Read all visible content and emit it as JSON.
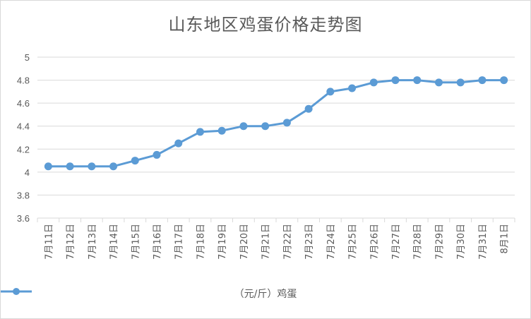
{
  "chart_data": {
    "type": "line",
    "title": "山东地区鸡蛋价格走势图",
    "categories": [
      "7月11日",
      "7月12日",
      "7月13日",
      "7月14日",
      "7月15日",
      "7月16日",
      "7月17日",
      "7月18日",
      "7月19日",
      "7月20日",
      "7月21日",
      "7月22日",
      "7月23日",
      "7月24日",
      "7月25日",
      "7月26日",
      "7月27日",
      "7月28日",
      "7月29日",
      "7月30日",
      "7月31日",
      "8月1日"
    ],
    "series": [
      {
        "name": "（元/斤）鸡蛋",
        "values": [
          4.05,
          4.05,
          4.05,
          4.05,
          4.1,
          4.15,
          4.25,
          4.35,
          4.36,
          4.4,
          4.4,
          4.43,
          4.55,
          4.7,
          4.73,
          4.78,
          4.8,
          4.8,
          4.78,
          4.78,
          4.8,
          4.8
        ]
      }
    ],
    "yticks": [
      "3.6",
      "3.8",
      "4",
      "4.2",
      "4.4",
      "4.6",
      "4.8",
      "5"
    ],
    "ylim": [
      3.6,
      5
    ],
    "grid": true,
    "legend_position": "bottom",
    "line_color": "#5b9bd5"
  }
}
